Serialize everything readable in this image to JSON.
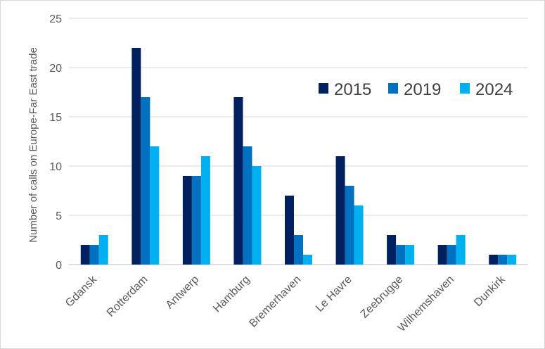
{
  "chart_data": {
    "type": "bar",
    "ylabel": "Number of calls on Europe-Far East trade",
    "ylim": [
      0,
      25
    ],
    "yticks": [
      0,
      5,
      10,
      15,
      20,
      25
    ],
    "grid": true,
    "legend_position": "top-right",
    "categories": [
      "Gdansk",
      "Rotterdam",
      "Antwerp",
      "Hamburg",
      "Bremerhaven",
      "Le Havre",
      "Zeebrugge",
      "Wilhemshaven",
      "Dunkirk"
    ],
    "series": [
      {
        "name": "2015",
        "color": "#002060",
        "values": [
          2,
          22,
          9,
          17,
          7,
          11,
          3,
          2,
          1
        ]
      },
      {
        "name": "2019",
        "color": "#0070C0",
        "values": [
          2,
          17,
          9,
          12,
          3,
          8,
          2,
          2,
          1
        ]
      },
      {
        "name": "2024",
        "color": "#00B0F0",
        "values": [
          3,
          12,
          11,
          10,
          1,
          6,
          2,
          3,
          1
        ]
      }
    ]
  }
}
